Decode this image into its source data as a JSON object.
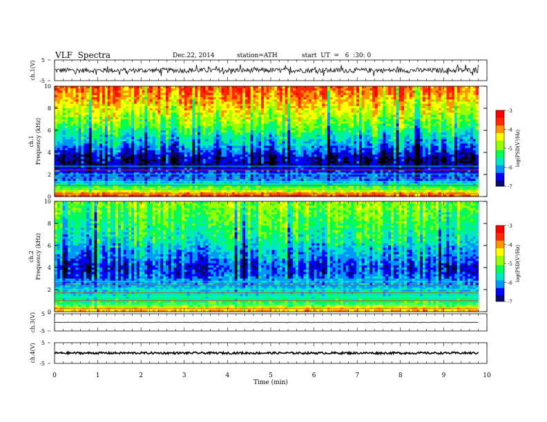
{
  "header": {
    "title": "VLF  Spectra",
    "date": "Dec.22, 2014",
    "station": "station=ATH",
    "start_ut": "start  UT  =   6  :30: 0"
  },
  "colors": {
    "colormap": [
      "#000000",
      "#0a0a8c",
      "#0000ff",
      "#00c8ff",
      "#00ff80",
      "#40ff00",
      "#ffff00",
      "#ff8000",
      "#ff0000",
      "#ffffff"
    ],
    "trace": "#000000"
  },
  "chart_data": [
    {
      "type": "line",
      "panel": "ch1-waveform",
      "ylabel": "ch.1(V)",
      "yticks": [
        "5",
        "-5"
      ],
      "ylim": [
        -5,
        5
      ],
      "description_values": {
        "baseline": 0,
        "typical_amplitude": 1.2,
        "max_spike": 2.8
      }
    },
    {
      "type": "heatmap",
      "panel": "ch1-spectrogram",
      "ylabel": "Frequency (kHz)",
      "channel_label": "ch.1",
      "yticks": [
        "0",
        "2",
        "4",
        "6",
        "8",
        "10"
      ],
      "ylim": [
        0,
        10
      ],
      "freq_profile_kHz": [
        0,
        0.5,
        1,
        1.5,
        2,
        2.5,
        3,
        3.5,
        4,
        4.5,
        5,
        5.5,
        6,
        6.5,
        7,
        7.5,
        8,
        8.5,
        9,
        9.5,
        10
      ],
      "mean_logPSD": [
        -3.4,
        -4.6,
        -5.4,
        -6.1,
        -6.3,
        -6.6,
        -6.8,
        -6.7,
        -6.4,
        -6.1,
        -5.8,
        -5.6,
        -5.3,
        -5.0,
        -4.8,
        -4.6,
        -4.4,
        -4.2,
        -4.0,
        -3.8,
        -3.7
      ],
      "colorbar": {
        "label": "log(PSD(V²/Hz)",
        "ticks": [
          "-3",
          "-4",
          "-5",
          "-6",
          "-7"
        ],
        "range": [
          -7,
          -3
        ]
      }
    },
    {
      "type": "heatmap",
      "panel": "ch2-spectrogram",
      "ylabel": "Frequency (kHz)",
      "channel_label": "ch.2",
      "yticks": [
        "0",
        "2",
        "4",
        "6",
        "8",
        "10"
      ],
      "ylim": [
        0,
        10
      ],
      "freq_profile_kHz": [
        0,
        0.5,
        1,
        1.5,
        2,
        2.5,
        3,
        3.5,
        4,
        4.5,
        5,
        5.5,
        6,
        6.5,
        7,
        7.5,
        8,
        8.5,
        9,
        9.5,
        10
      ],
      "mean_logPSD": [
        -4.0,
        -4.8,
        -5.4,
        -5.6,
        -5.8,
        -6.0,
        -6.1,
        -6.3,
        -6.4,
        -6.2,
        -6.0,
        -5.9,
        -5.7,
        -5.5,
        -5.4,
        -5.3,
        -5.2,
        -5.1,
        -5.0,
        -4.9,
        -4.8
      ],
      "colorbar": {
        "label": "log(PSD(V²/Hz)",
        "ticks": [
          "-3",
          "-4",
          "-5",
          "-6",
          "-7"
        ],
        "range": [
          -7,
          -3
        ]
      }
    },
    {
      "type": "line",
      "panel": "ch3-waveform",
      "ylabel": "ch.3(V)",
      "yticks": [
        "5",
        "-5"
      ],
      "ylim": [
        -5,
        5
      ],
      "description_values": {
        "baseline": 0,
        "typical_amplitude": 0.15
      }
    },
    {
      "type": "line",
      "panel": "ch4-waveform",
      "ylabel": "ch.4(V)",
      "yticks": [
        "5",
        "-5"
      ],
      "ylim": [
        -5,
        5
      ],
      "description_values": {
        "baseline": 0,
        "typical_amplitude": 0.5
      }
    }
  ],
  "xaxis": {
    "label": "Time  (min)",
    "ticks": [
      "0",
      "1",
      "2",
      "3",
      "4",
      "5",
      "6",
      "7",
      "8",
      "9",
      "10"
    ],
    "xlim": [
      0,
      10
    ],
    "data_end": 9.8
  }
}
